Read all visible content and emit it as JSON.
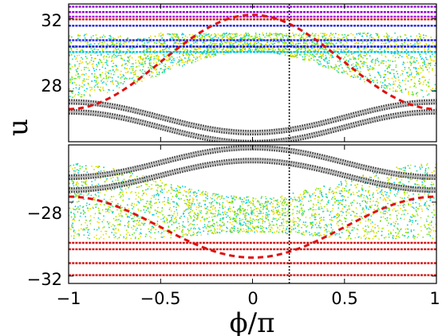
{
  "chart_data": {
    "type": "scatter",
    "title": "",
    "xlabel": "ϕ/π",
    "ylabel": "u",
    "xlim": [
      -1,
      1
    ],
    "x_ticks": [
      -1,
      -0.5,
      0,
      0.5,
      1
    ],
    "x_tick_labels": [
      "−1",
      "−0.5",
      "0",
      "0.5",
      "1"
    ],
    "grid": false,
    "legend": "none",
    "panels": [
      {
        "id": "upper",
        "ylim": [
          25.2,
          32.8
        ],
        "y_ticks": [
          28,
          32
        ],
        "y_tick_labels": [
          "28",
          "32"
        ],
        "separatrix_dashed_red": {
          "center": 29.6,
          "amplitude": 2.6,
          "phase_min_at": -0.5
        },
        "chaotic_sea": {
          "colors": [
            "#00c8f0",
            "#20d8a0",
            "#60e020",
            "#a0e800",
            "#d8e800",
            "#ffd400"
          ],
          "lower_edge_center": 28.9,
          "lower_edge_amplitude": 1.4,
          "upper_edge": 31.2
        },
        "gray_bands": [
          {
            "center": 26.55,
            "amplitude": 0.85
          },
          {
            "center": 26.0,
            "amplitude": 0.85
          }
        ],
        "horizontal_tori": [
          {
            "u": 32.65,
            "color": "#9400d3"
          },
          {
            "u": 32.35,
            "color": "#9400d3"
          },
          {
            "u": 32.1,
            "color": "#a000e0"
          },
          {
            "u": 31.95,
            "color": "#d01818"
          },
          {
            "u": 31.6,
            "color": "#2020e0"
          },
          {
            "u": 30.8,
            "color": "#3030f0"
          },
          {
            "u": 30.45,
            "color": "#1010d0"
          },
          {
            "u": 30.15,
            "color": "#00c0f0"
          }
        ],
        "vertical_marker_x": 0.2
      },
      {
        "id": "lower",
        "ylim": [
          -32.4,
          -24.9
        ],
        "y_ticks": [
          -28,
          -32
        ],
        "y_tick_labels": [
          "−28",
          "−32"
        ],
        "separatrix_dashed_red": {
          "center": -29.35,
          "amplitude": 1.65,
          "phase_max_at": -0.5
        },
        "chaotic_sea": {
          "colors": [
            "#00c8f0",
            "#20d8a0",
            "#60e020",
            "#a0e800",
            "#d8e800",
            "#ffd400"
          ],
          "upper_edge_center": -26.8,
          "upper_edge_amplitude": 0.9,
          "lower_edge": -30.0
        },
        "gray_bands": [
          {
            "center": -25.85,
            "amplitude": 0.8
          },
          {
            "center": -26.55,
            "amplitude": 0.8
          }
        ],
        "horizontal_tori": [
          {
            "u": -30.2,
            "color": "#d01818"
          },
          {
            "u": -30.55,
            "color": "#d01818"
          },
          {
            "u": -31.3,
            "color": "#d01818"
          },
          {
            "u": -31.95,
            "color": "#d01818"
          }
        ],
        "vertical_marker_x": 0.2
      }
    ]
  }
}
